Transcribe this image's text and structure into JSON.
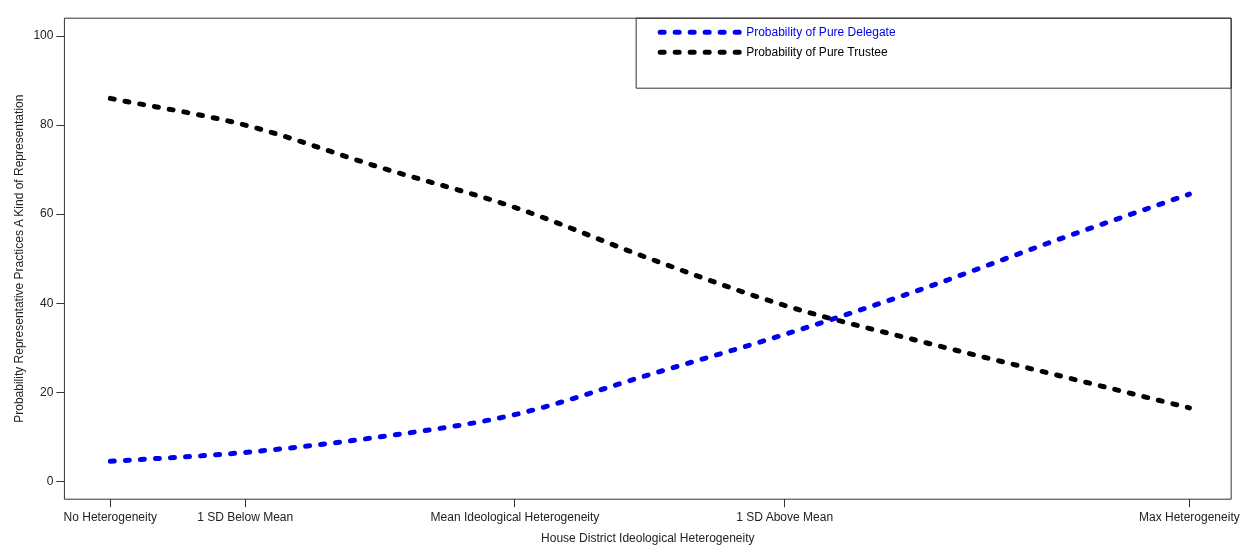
{
  "chart_data": {
    "type": "line",
    "xlabel": "House District Ideological Heterogeneity",
    "ylabel": "Probability Representative Practices A Kind of Representation",
    "categories": [
      "No Heterogeneity",
      "1 SD Below Mean",
      null,
      "Mean Ideological Heterogeneity",
      null,
      "1 SD Above Mean",
      null,
      null,
      "Max Heterogeneity"
    ],
    "series": [
      {
        "name": "Probability of Pure Delegate",
        "color": "#0000ee",
        "values": [
          4.5,
          6.5,
          10,
          15,
          24,
          33,
          43,
          54,
          64.5
        ]
      },
      {
        "name": "Probability of Pure Trustee",
        "color": "#000000",
        "values": [
          86,
          80,
          70.5,
          61.5,
          50,
          39.5,
          31.5,
          24,
          16.5
        ]
      }
    ],
    "ylim": [
      -4,
      104
    ],
    "yticks": [
      0,
      20,
      40,
      60,
      80,
      100
    ],
    "grid": false,
    "legend": "top right",
    "line_style": "dotted",
    "marker": "none"
  }
}
